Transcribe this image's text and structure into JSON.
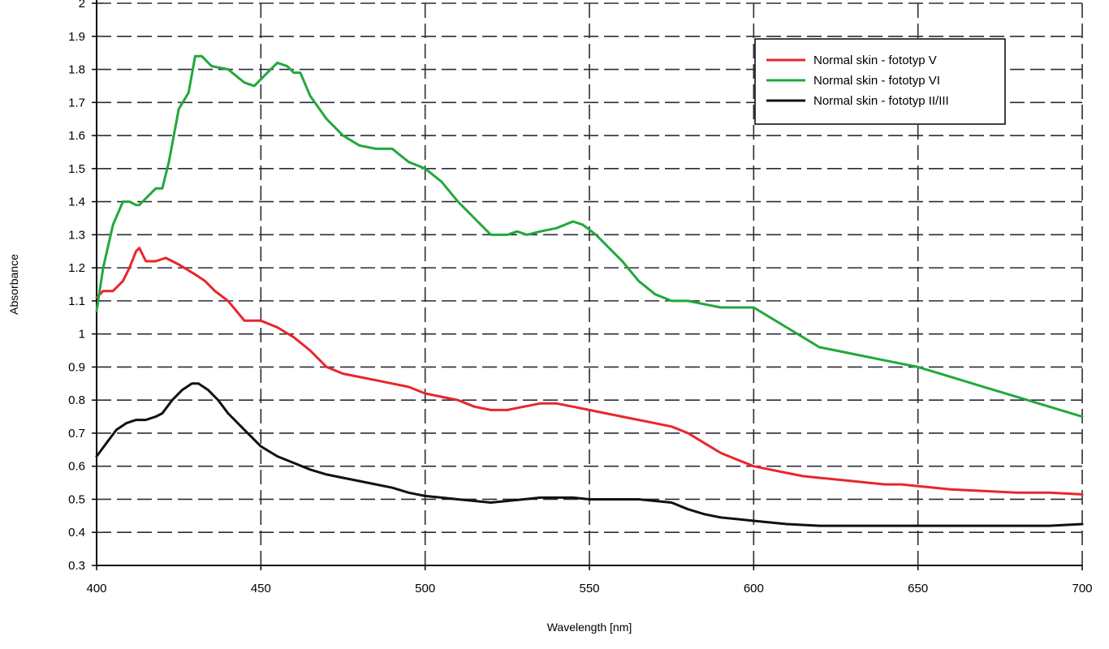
{
  "chart_data": {
    "type": "line",
    "title": "",
    "xlabel": "Wavelength [nm]",
    "ylabel": "Absorbance",
    "xlim": [
      400,
      700
    ],
    "ylim": [
      0.3,
      2
    ],
    "x_ticks": [
      400,
      450,
      500,
      550,
      600,
      650,
      700
    ],
    "y_ticks": [
      0.3,
      0.4,
      0.5,
      0.6,
      0.7,
      0.8,
      0.9,
      1,
      1.1,
      1.2,
      1.3,
      1.4,
      1.5,
      1.6,
      1.7,
      1.8,
      1.9,
      2
    ],
    "grid": true,
    "legend_position": "top-right",
    "series": [
      {
        "name": "Normal skin - fototyp V",
        "color": "#e8262b",
        "x": [
          400,
          402,
          405,
          408,
          410,
          412,
          413,
          415,
          418,
          421,
          425,
          430,
          433,
          436,
          440,
          445,
          450,
          455,
          460,
          465,
          470,
          475,
          480,
          485,
          490,
          495,
          500,
          505,
          510,
          515,
          520,
          525,
          530,
          535,
          540,
          545,
          550,
          555,
          560,
          565,
          570,
          575,
          580,
          585,
          590,
          595,
          600,
          605,
          610,
          615,
          620,
          625,
          630,
          635,
          640,
          645,
          650,
          655,
          660,
          670,
          680,
          690,
          700
        ],
        "y": [
          1.11,
          1.13,
          1.13,
          1.16,
          1.2,
          1.25,
          1.26,
          1.22,
          1.22,
          1.23,
          1.21,
          1.18,
          1.16,
          1.13,
          1.1,
          1.04,
          1.04,
          1.02,
          0.99,
          0.95,
          0.9,
          0.88,
          0.87,
          0.86,
          0.85,
          0.84,
          0.82,
          0.81,
          0.8,
          0.78,
          0.77,
          0.77,
          0.78,
          0.79,
          0.79,
          0.78,
          0.77,
          0.76,
          0.75,
          0.74,
          0.73,
          0.72,
          0.7,
          0.67,
          0.64,
          0.62,
          0.6,
          0.59,
          0.58,
          0.57,
          0.565,
          0.56,
          0.555,
          0.55,
          0.545,
          0.545,
          0.54,
          0.535,
          0.53,
          0.525,
          0.52,
          0.52,
          0.515
        ]
      },
      {
        "name": "Normal skin - fototyp VI",
        "color": "#22a83b",
        "x": [
          400,
          402,
          405,
          408,
          410,
          412,
          413,
          415,
          418,
          420,
          422,
          425,
          428,
          430,
          432,
          435,
          440,
          445,
          448,
          452,
          455,
          458,
          460,
          462,
          465,
          470,
          475,
          480,
          485,
          490,
          495,
          500,
          505,
          510,
          515,
          520,
          525,
          528,
          531,
          535,
          540,
          545,
          548,
          552,
          555,
          560,
          565,
          570,
          575,
          580,
          585,
          590,
          595,
          600,
          605,
          610,
          615,
          620,
          625,
          630,
          640,
          650,
          660,
          670,
          680,
          690,
          700
        ],
        "y": [
          1.07,
          1.2,
          1.33,
          1.4,
          1.4,
          1.39,
          1.39,
          1.41,
          1.44,
          1.44,
          1.52,
          1.68,
          1.73,
          1.84,
          1.84,
          1.81,
          1.8,
          1.76,
          1.75,
          1.79,
          1.82,
          1.81,
          1.79,
          1.79,
          1.72,
          1.65,
          1.6,
          1.57,
          1.56,
          1.56,
          1.52,
          1.5,
          1.46,
          1.4,
          1.35,
          1.3,
          1.3,
          1.31,
          1.3,
          1.31,
          1.32,
          1.34,
          1.33,
          1.3,
          1.27,
          1.22,
          1.16,
          1.12,
          1.1,
          1.1,
          1.09,
          1.08,
          1.08,
          1.08,
          1.05,
          1.02,
          0.99,
          0.96,
          0.95,
          0.94,
          0.92,
          0.9,
          0.87,
          0.84,
          0.81,
          0.78,
          0.75
        ]
      },
      {
        "name": "Normal skin - fototyp II/III",
        "color": "#111111",
        "x": [
          400,
          403,
          406,
          409,
          412,
          415,
          418,
          420,
          423,
          426,
          429,
          431,
          434,
          437,
          440,
          445,
          450,
          455,
          460,
          465,
          470,
          475,
          480,
          485,
          490,
          495,
          500,
          505,
          510,
          515,
          520,
          525,
          530,
          535,
          540,
          545,
          550,
          555,
          560,
          565,
          570,
          575,
          580,
          585,
          590,
          595,
          600,
          605,
          610,
          620,
          630,
          640,
          650,
          660,
          670,
          680,
          690,
          700
        ],
        "y": [
          0.63,
          0.67,
          0.71,
          0.73,
          0.74,
          0.74,
          0.75,
          0.76,
          0.8,
          0.83,
          0.85,
          0.85,
          0.83,
          0.8,
          0.76,
          0.71,
          0.66,
          0.63,
          0.61,
          0.59,
          0.575,
          0.565,
          0.555,
          0.545,
          0.535,
          0.52,
          0.51,
          0.505,
          0.5,
          0.495,
          0.49,
          0.495,
          0.5,
          0.505,
          0.505,
          0.505,
          0.5,
          0.5,
          0.5,
          0.5,
          0.495,
          0.49,
          0.47,
          0.455,
          0.445,
          0.44,
          0.435,
          0.43,
          0.425,
          0.42,
          0.42,
          0.42,
          0.42,
          0.42,
          0.42,
          0.42,
          0.42,
          0.425
        ]
      }
    ]
  }
}
